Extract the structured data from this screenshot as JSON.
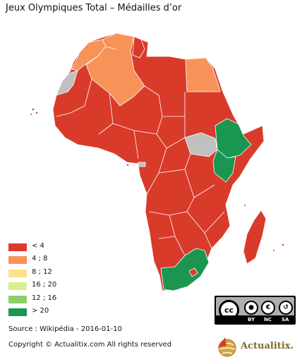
{
  "title": "Jeux Olympiques Total – Médailles d’or",
  "colors": {
    "lt4": "#d93b2b",
    "c4_8": "#f79258",
    "c8_12": "#fde08a",
    "c16_20": "#dbef8f",
    "c12_16": "#8bcf6a",
    "gt20": "#1b9650",
    "nodata": "#c0c0c0",
    "border": "#ffffff"
  },
  "legend": [
    {
      "label": "< 4",
      "color": "#d93b2b"
    },
    {
      "label": "4 ; 8",
      "color": "#f79258"
    },
    {
      "label": "8 ; 12",
      "color": "#fde08a"
    },
    {
      "label": "16 ; 20",
      "color": "#dbef8f"
    },
    {
      "label": "12 ; 16",
      "color": "#8bcf6a"
    },
    {
      "label": "> 20",
      "color": "#1b9650"
    }
  ],
  "source": "Source : Wikipédia - 2016-01-10",
  "copyright": "Copyright © Actualitix.com All rights reserved",
  "license": {
    "cc": "cc",
    "by": "BY",
    "nc": "NC",
    "sa": "SA"
  },
  "brand": {
    "name": "Actualitix."
  }
}
